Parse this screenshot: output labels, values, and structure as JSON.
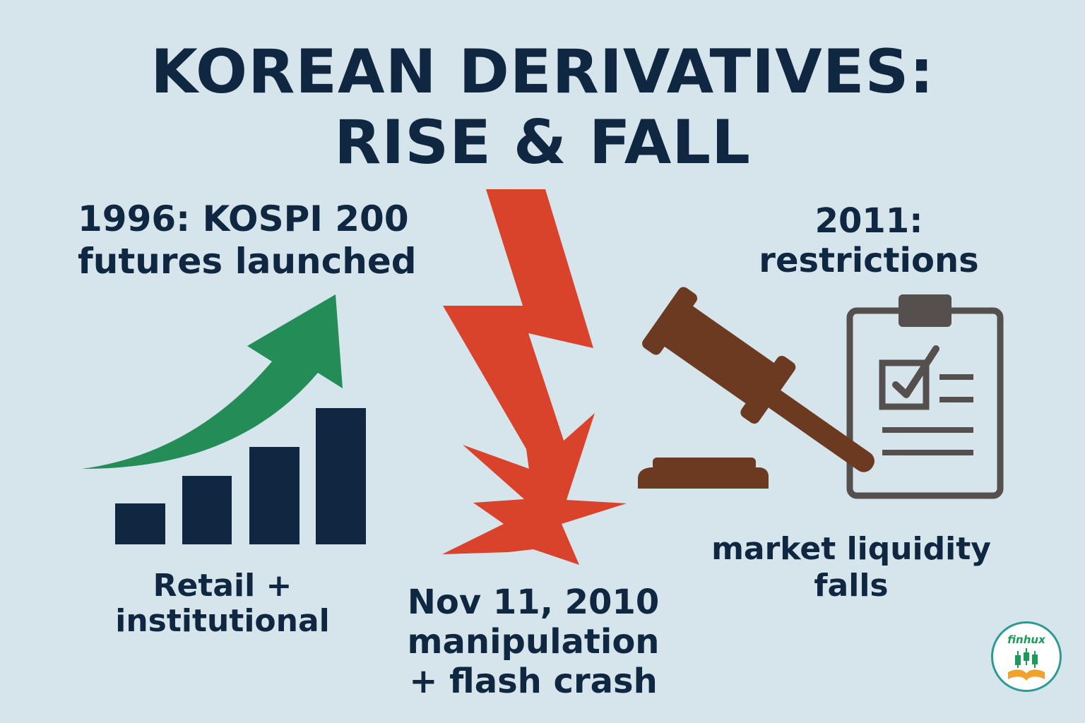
{
  "title": {
    "line1": "KOREAN DERIVATIVES:",
    "line2": "RISE & FALL"
  },
  "labels": {
    "launch": [
      "1996: KOSPI 200",
      "futures launched"
    ],
    "participants": [
      "Retail +",
      "institutional"
    ],
    "crash": [
      "Nov 11, 2010",
      "manipulation",
      "+ flash crash"
    ],
    "restrictions": [
      "2011:",
      "restrictions"
    ],
    "liquidity": [
      "market liquidity",
      "falls"
    ]
  },
  "logo": {
    "wordmark": "finhux"
  },
  "colors": {
    "background": "#d6e5ec",
    "navy": "#0f2740",
    "green_arrow": "#238c57",
    "red_crash": "#d9432c",
    "gavel_brown": "#6b3a20",
    "clipboard_gray": "#55504e"
  },
  "icons": [
    "bar-chart-icon",
    "growth-arrow-icon",
    "lightning-bolt-icon",
    "crash-burst-icon",
    "gavel-icon",
    "clipboard-checklist-icon",
    "finhux-logo"
  ]
}
